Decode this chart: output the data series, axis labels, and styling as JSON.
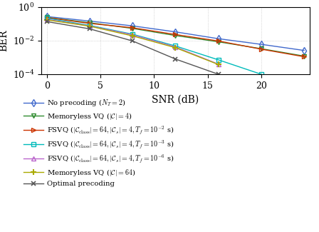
{
  "title": "",
  "xlabel": "SNR (dB)",
  "ylabel": "BER",
  "xlim": [
    -0.5,
    24.5
  ],
  "ylim": [
    0.0001,
    1.0
  ],
  "xticks": [
    0,
    5,
    10,
    15,
    20
  ],
  "series": [
    {
      "label_key": "no_precoding",
      "color": "#4169cc",
      "marker": "d",
      "markersize": 5,
      "x": [
        0,
        4,
        8,
        12,
        16,
        20,
        24
      ],
      "y": [
        0.27,
        0.145,
        0.075,
        0.033,
        0.013,
        0.006,
        0.0026
      ]
    },
    {
      "label_key": "memoryless_vq4",
      "color": "#2e8b2e",
      "marker": "v",
      "markersize": 5,
      "x": [
        0,
        4,
        8,
        12,
        16,
        20,
        24
      ],
      "y": [
        0.24,
        0.115,
        0.053,
        0.02,
        0.0085,
        0.0033,
        0.0012
      ]
    },
    {
      "label_key": "fsvq_1e2",
      "color": "#cc3300",
      "marker": ">",
      "markersize": 5,
      "x": [
        0,
        4,
        8,
        12,
        16,
        20,
        24
      ],
      "y": [
        0.235,
        0.105,
        0.058,
        0.023,
        0.0095,
        0.0031,
        0.0011
      ]
    },
    {
      "label_key": "fsvq_1e3",
      "color": "#00bbbb",
      "marker": "s",
      "markersize": 4,
      "x": [
        0,
        4,
        8,
        12,
        16,
        20
      ],
      "y": [
        0.215,
        0.08,
        0.024,
        0.0048,
        0.00072,
        0.0001
      ]
    },
    {
      "label_key": "fsvq_1e6",
      "color": "#bb66cc",
      "marker": "^",
      "markersize": 5,
      "x": [
        0,
        4,
        8,
        12,
        16
      ],
      "y": [
        0.185,
        0.075,
        0.022,
        0.0042,
        0.0004
      ]
    },
    {
      "label_key": "memoryless_vq64",
      "color": "#aaaa00",
      "marker": "+",
      "markersize": 6,
      "markeredgewidth": 1.5,
      "x": [
        0,
        4,
        8,
        12,
        16
      ],
      "y": [
        0.17,
        0.072,
        0.019,
        0.0038,
        0.00038
      ]
    },
    {
      "label_key": "optimal",
      "color": "#555555",
      "marker": "x",
      "markersize": 5,
      "markeredgewidth": 1.2,
      "x": [
        0,
        4,
        8,
        12,
        16
      ],
      "y": [
        0.135,
        0.05,
        0.0095,
        0.0008,
        0.0001
      ]
    }
  ],
  "legend": {
    "no_precoding": "No precoding ($N_T = 2$)",
    "memoryless_vq4": "Memoryless VQ ($|\\mathcal{C}| = 4$)",
    "fsvq_1e2": "FSVQ ($|\\mathcal{C}_{\\mathrm{class}}| = 64, |\\mathcal{C}_s| = 4, T_f = 10^{-2}$ s)",
    "fsvq_1e3": "FSVQ ($|\\mathcal{C}_{\\mathrm{class}}| = 64, |\\mathcal{C}_s| = 4, T_f = 10^{-3}$ s)",
    "fsvq_1e6": "FSVQ ($|\\mathcal{C}_{\\mathrm{class}}| = 64, |\\mathcal{C}_s| = 4, T_f = 10^{-6}$ s)",
    "memoryless_vq64": "Memoryless VQ ($|\\mathcal{C}| = 64$)",
    "optimal": "Optimal precoding"
  },
  "background_color": "#ffffff",
  "grid_color": "#bbbbbb",
  "legend_fontsize": 7.2,
  "axis_fontsize": 10,
  "tick_fontsize": 9
}
